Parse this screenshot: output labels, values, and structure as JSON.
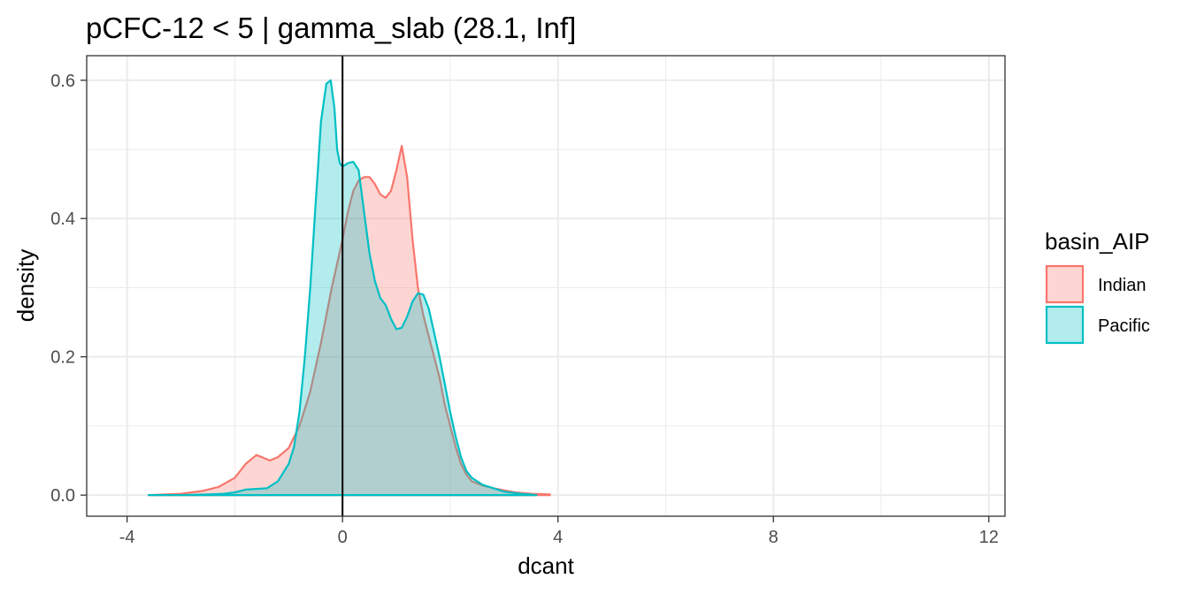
{
  "chart_data": {
    "type": "area",
    "title": "pCFC-12 < 5 | gamma_slab (28.1, Inf]",
    "xlabel": "dcant",
    "ylabel": "density",
    "xlim": [
      -4,
      12
    ],
    "ylim": [
      0,
      0.6
    ],
    "x_ticks": [
      "-4",
      "0",
      "4",
      "8",
      "12"
    ],
    "y_ticks": [
      "0.0",
      "0.2",
      "0.4",
      "0.6"
    ],
    "x_tick_values": [
      -4,
      0,
      4,
      8,
      12
    ],
    "y_tick_values": [
      0.0,
      0.2,
      0.4,
      0.6
    ],
    "reference_line": {
      "x": 0,
      "color": "#000000"
    },
    "legend": {
      "title": "basin_AIP",
      "position": "right"
    },
    "series": [
      {
        "name": "Indian",
        "color": "#F8766D",
        "x": [
          -3.6,
          -3.0,
          -2.6,
          -2.3,
          -2.0,
          -1.8,
          -1.6,
          -1.5,
          -1.35,
          -1.2,
          -1.0,
          -0.8,
          -0.6,
          -0.4,
          -0.2,
          0.0,
          0.1,
          0.2,
          0.3,
          0.4,
          0.5,
          0.6,
          0.7,
          0.8,
          0.9,
          1.0,
          1.1,
          1.2,
          1.3,
          1.4,
          1.5,
          1.6,
          1.7,
          1.8,
          1.9,
          2.0,
          2.1,
          2.2,
          2.3,
          2.4,
          2.6,
          2.8,
          3.0,
          3.2,
          3.5,
          3.85
        ],
        "values": [
          0.0,
          0.002,
          0.006,
          0.012,
          0.025,
          0.045,
          0.058,
          0.055,
          0.05,
          0.055,
          0.068,
          0.1,
          0.15,
          0.22,
          0.3,
          0.37,
          0.41,
          0.44,
          0.455,
          0.46,
          0.46,
          0.45,
          0.435,
          0.43,
          0.44,
          0.47,
          0.505,
          0.46,
          0.37,
          0.3,
          0.26,
          0.23,
          0.2,
          0.17,
          0.13,
          0.1,
          0.07,
          0.045,
          0.03,
          0.02,
          0.014,
          0.01,
          0.007,
          0.004,
          0.002,
          0.001
        ]
      },
      {
        "name": "Pacific",
        "color": "#00BFC4",
        "x": [
          -3.6,
          -3.0,
          -2.5,
          -2.2,
          -2.0,
          -1.8,
          -1.6,
          -1.4,
          -1.2,
          -1.0,
          -0.9,
          -0.8,
          -0.7,
          -0.6,
          -0.5,
          -0.45,
          -0.4,
          -0.3,
          -0.22,
          -0.15,
          -0.1,
          -0.05,
          0.0,
          0.1,
          0.2,
          0.3,
          0.4,
          0.5,
          0.6,
          0.7,
          0.8,
          0.9,
          1.0,
          1.1,
          1.2,
          1.3,
          1.4,
          1.5,
          1.6,
          1.7,
          1.8,
          1.9,
          2.0,
          2.1,
          2.2,
          2.3,
          2.4,
          2.6,
          2.8,
          3.0,
          3.3,
          3.6
        ],
        "values": [
          0.0,
          0.0,
          0.001,
          0.002,
          0.004,
          0.008,
          0.009,
          0.01,
          0.02,
          0.045,
          0.07,
          0.12,
          0.2,
          0.3,
          0.42,
          0.48,
          0.54,
          0.595,
          0.6,
          0.56,
          0.5,
          0.48,
          0.475,
          0.48,
          0.482,
          0.47,
          0.41,
          0.35,
          0.31,
          0.285,
          0.275,
          0.255,
          0.24,
          0.242,
          0.258,
          0.28,
          0.292,
          0.29,
          0.27,
          0.235,
          0.2,
          0.16,
          0.12,
          0.085,
          0.055,
          0.035,
          0.025,
          0.015,
          0.01,
          0.005,
          0.002,
          0.0
        ]
      }
    ]
  }
}
